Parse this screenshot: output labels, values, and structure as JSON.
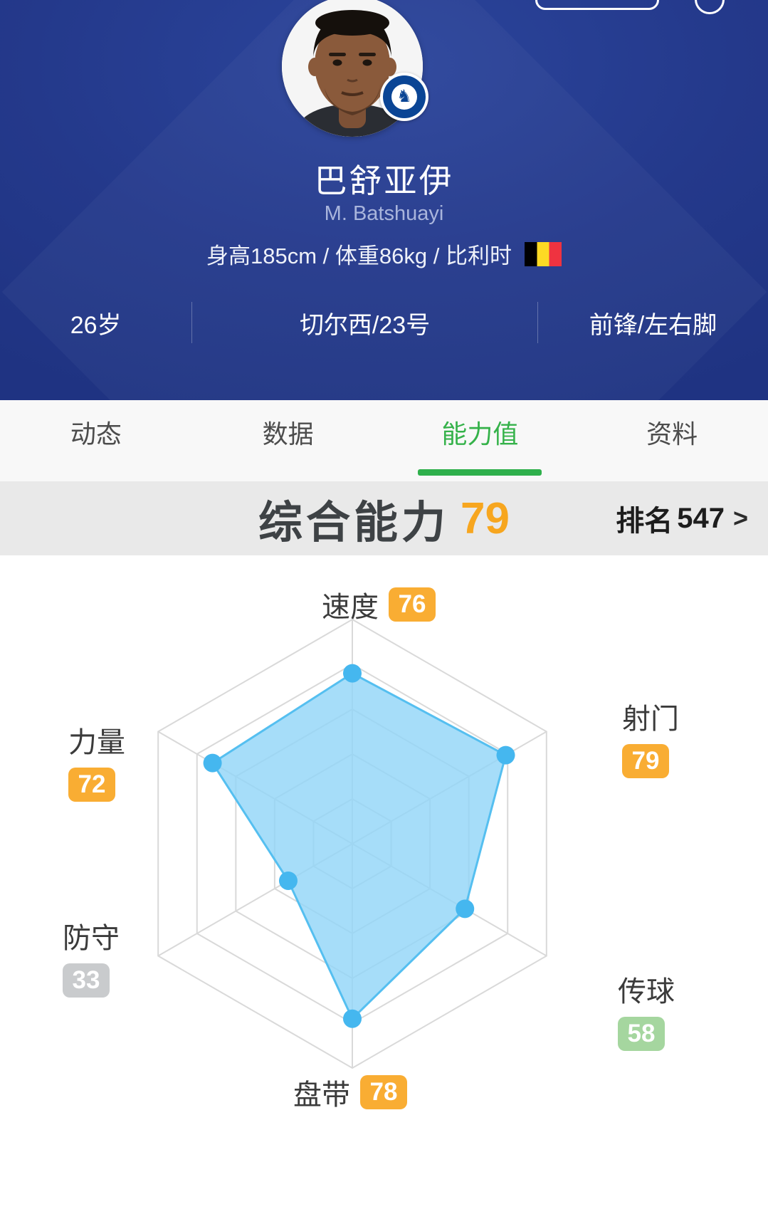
{
  "header": {
    "name_cn": "巴舒亚伊",
    "name_en": "M. Batshuayi",
    "physical": "身高185cm / 体重86kg / 比利时",
    "flag": "belgium-flag",
    "info": {
      "age": "26岁",
      "club_number": "切尔西/23号",
      "position_foot": "前锋/左右脚"
    }
  },
  "tabs": {
    "items": [
      {
        "label": "动态"
      },
      {
        "label": "数据"
      },
      {
        "label": "能力值"
      },
      {
        "label": "资料"
      }
    ],
    "active_index": 2,
    "active_color": "#35b24a"
  },
  "ability": {
    "title": "综合能力",
    "score": 79,
    "score_color": "#f7a61f",
    "rank_label": "排名",
    "rank_value": "547",
    "chevron": ">"
  },
  "radar": {
    "skills": [
      {
        "name": "速度",
        "value": 76,
        "tone": "orange"
      },
      {
        "name": "射门",
        "value": 79,
        "tone": "orange"
      },
      {
        "name": "传球",
        "value": 58,
        "tone": "green"
      },
      {
        "name": "盘带",
        "value": 78,
        "tone": "orange"
      },
      {
        "name": "防守",
        "value": 33,
        "tone": "gray"
      },
      {
        "name": "力量",
        "value": 72,
        "tone": "orange"
      }
    ]
  },
  "chart_data": {
    "type": "radar",
    "categories": [
      "速度",
      "射门",
      "传球",
      "盘带",
      "防守",
      "力量"
    ],
    "values": [
      76,
      79,
      58,
      78,
      33,
      72
    ],
    "max": 100,
    "rings": 5,
    "grid_shape": "hexagon",
    "grid_color": "#d9d9d9",
    "fill_color": "#90d5f8",
    "line_color": "#55bff0",
    "dot_color": "#45b7ef"
  },
  "colors": {
    "header_bg": "#24398b",
    "band_bg": "#e9e9e9",
    "badge_orange": "#f9ad33",
    "badge_green": "#a5d69f",
    "badge_gray": "#c9cbcd"
  }
}
